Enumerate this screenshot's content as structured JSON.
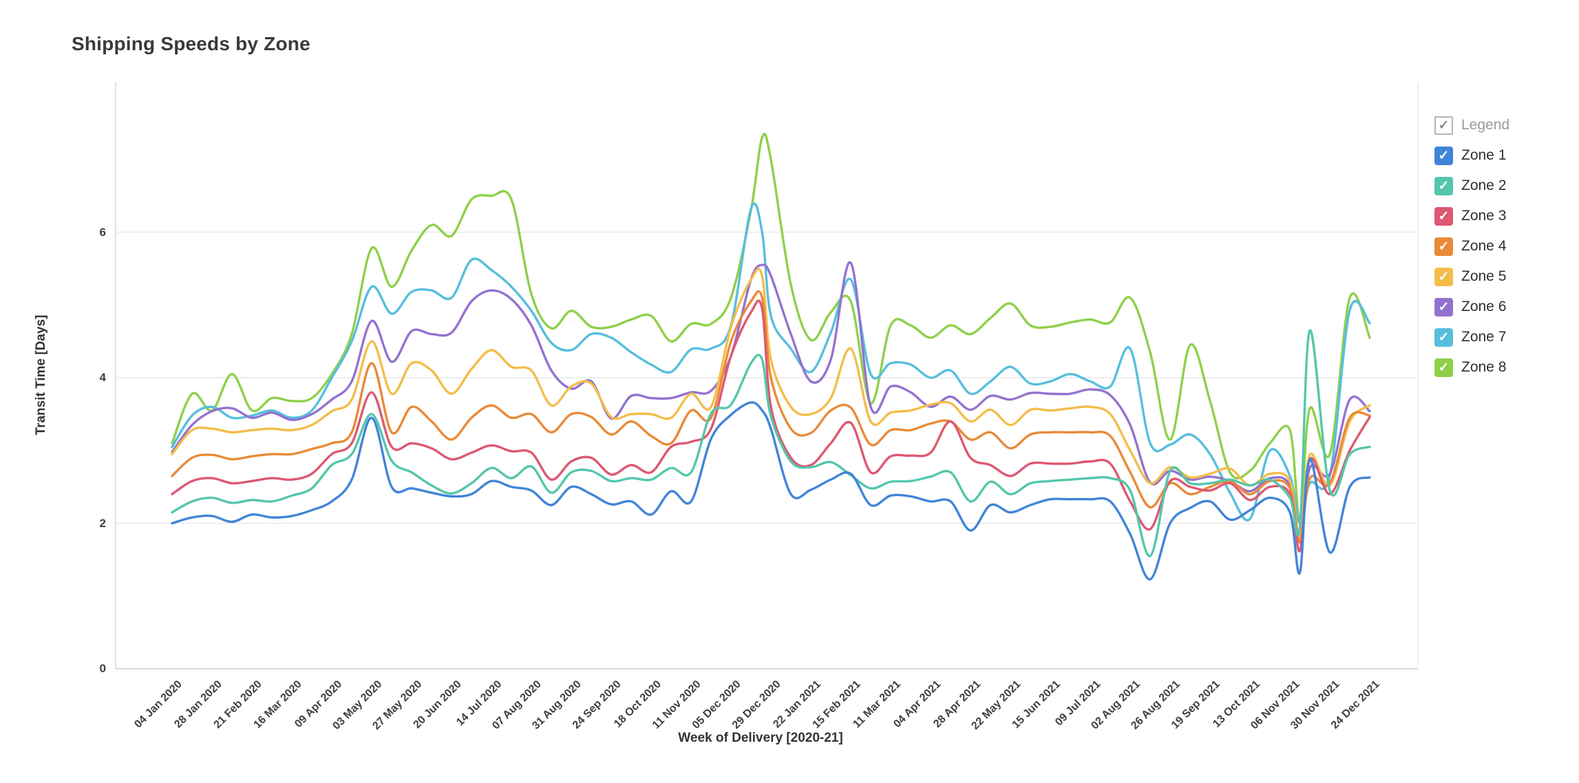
{
  "title": "Shipping Speeds by Zone",
  "legend": {
    "header_label": "Legend",
    "check_glyph": "✓",
    "items": [
      {
        "label": "Zone 1",
        "color": "#4184d8"
      },
      {
        "label": "Zone 2",
        "color": "#54c6ac"
      },
      {
        "label": "Zone 3",
        "color": "#dd5872"
      },
      {
        "label": "Zone 4",
        "color": "#e98a38"
      },
      {
        "label": "Zone 5",
        "color": "#f3bd4a"
      },
      {
        "label": "Zone 6",
        "color": "#9372cf"
      },
      {
        "label": "Zone 7",
        "color": "#57bedd"
      },
      {
        "label": "Zone 8",
        "color": "#8ed04a"
      }
    ]
  },
  "chart_data": {
    "type": "line",
    "title": "Shipping Speeds by Zone",
    "xlabel": "Week of Delivery [2020-21]",
    "ylabel": "Transit Time [Days]",
    "ylim": [
      0,
      7.6
    ],
    "yticks": [
      0,
      2,
      4,
      6
    ],
    "grid": "horizontal",
    "legend_position": "right",
    "x_tick_labels": [
      "04 Jan 2020",
      "28 Jan 2020",
      "21 Feb 2020",
      "16 Mar 2020",
      "09 Apr 2020",
      "03 May 2020",
      "27 May 2020",
      "20 Jun 2020",
      "14 Jul 2020",
      "07 Aug 2020",
      "31 Aug 2020",
      "24 Sep 2020",
      "18 Oct 2020",
      "11 Nov 2020",
      "05 Dec 2020",
      "29 Dec 2020",
      "22 Jan 2021",
      "15 Feb 2021",
      "11 Mar 2021",
      "04 Apr 2021",
      "28 Apr 2021",
      "22 May 2021",
      "15 Jun 2021",
      "09 Jul 2021",
      "02 Aug 2021",
      "26 Aug 2021",
      "19 Sep 2021",
      "13 Oct 2021",
      "06 Nov 2021",
      "30 Nov 2021",
      "24 Dec 2021"
    ],
    "x": [
      0,
      0.5,
      1,
      1.5,
      2,
      2.5,
      3,
      3.5,
      4,
      4.5,
      5,
      5.5,
      6,
      6.5,
      7,
      7.5,
      8,
      8.5,
      9,
      9.5,
      10,
      10.5,
      11,
      11.5,
      12,
      12.5,
      13,
      13.5,
      14,
      14.5,
      14.78,
      15,
      15.5,
      16,
      16.5,
      17,
      17.5,
      18,
      18.5,
      19,
      19.5,
      20,
      20.5,
      21,
      21.5,
      22,
      22.5,
      23,
      23.5,
      24,
      24.5,
      25,
      25.5,
      26,
      26.5,
      27,
      27.5,
      28,
      28.25,
      28.5,
      29,
      29.5,
      30
    ],
    "series": [
      {
        "name": "Zone 1",
        "color": "#4184d8",
        "values": [
          2.0,
          2.08,
          2.1,
          2.02,
          2.12,
          2.08,
          2.1,
          2.18,
          2.3,
          2.6,
          3.45,
          2.5,
          2.48,
          2.42,
          2.37,
          2.4,
          2.58,
          2.5,
          2.45,
          2.25,
          2.5,
          2.4,
          2.26,
          2.3,
          2.12,
          2.44,
          2.3,
          3.16,
          3.49,
          3.66,
          3.55,
          3.3,
          2.4,
          2.46,
          2.6,
          2.68,
          2.25,
          2.38,
          2.37,
          2.3,
          2.3,
          1.9,
          2.25,
          2.15,
          2.25,
          2.33,
          2.33,
          2.33,
          2.3,
          1.85,
          1.23,
          2.0,
          2.21,
          2.3,
          2.05,
          2.18,
          2.35,
          2.15,
          1.32,
          2.88,
          1.6,
          2.5,
          2.63
        ]
      },
      {
        "name": "Zone 2",
        "color": "#54c6ac",
        "values": [
          2.15,
          2.3,
          2.35,
          2.28,
          2.32,
          2.3,
          2.38,
          2.48,
          2.8,
          2.95,
          3.5,
          2.86,
          2.7,
          2.52,
          2.41,
          2.55,
          2.76,
          2.62,
          2.78,
          2.42,
          2.7,
          2.72,
          2.58,
          2.62,
          2.6,
          2.76,
          2.7,
          3.51,
          3.63,
          4.2,
          4.25,
          3.47,
          2.85,
          2.77,
          2.84,
          2.66,
          2.48,
          2.57,
          2.58,
          2.64,
          2.7,
          2.3,
          2.57,
          2.4,
          2.55,
          2.58,
          2.6,
          2.62,
          2.62,
          2.45,
          1.55,
          2.72,
          2.55,
          2.55,
          2.6,
          2.52,
          2.6,
          2.35,
          1.95,
          4.65,
          2.45,
          2.95,
          3.05
        ]
      },
      {
        "name": "Zone 3",
        "color": "#dd5872",
        "values": [
          2.4,
          2.58,
          2.62,
          2.55,
          2.58,
          2.62,
          2.6,
          2.68,
          2.95,
          3.1,
          3.8,
          3.05,
          3.1,
          3.03,
          2.88,
          2.97,
          3.07,
          2.99,
          2.97,
          2.6,
          2.85,
          2.9,
          2.67,
          2.8,
          2.7,
          3.05,
          3.12,
          3.3,
          4.3,
          4.9,
          4.95,
          3.6,
          2.9,
          2.8,
          3.1,
          3.38,
          2.7,
          2.92,
          2.93,
          2.97,
          3.4,
          2.9,
          2.8,
          2.65,
          2.82,
          2.82,
          2.82,
          2.85,
          2.82,
          2.3,
          1.92,
          2.58,
          2.5,
          2.45,
          2.55,
          2.32,
          2.5,
          2.4,
          1.62,
          2.88,
          2.4,
          3.0,
          3.46
        ]
      },
      {
        "name": "Zone 4",
        "color": "#e98a38",
        "values": [
          2.65,
          2.9,
          2.94,
          2.88,
          2.92,
          2.95,
          2.95,
          3.02,
          3.1,
          3.25,
          4.2,
          3.25,
          3.6,
          3.4,
          3.15,
          3.45,
          3.62,
          3.45,
          3.5,
          3.25,
          3.5,
          3.46,
          3.22,
          3.4,
          3.2,
          3.1,
          3.55,
          3.45,
          4.5,
          5.05,
          5.1,
          4.0,
          3.3,
          3.24,
          3.55,
          3.59,
          3.08,
          3.28,
          3.28,
          3.37,
          3.4,
          3.15,
          3.25,
          3.03,
          3.22,
          3.25,
          3.25,
          3.25,
          3.2,
          2.7,
          2.22,
          2.55,
          2.4,
          2.5,
          2.58,
          2.4,
          2.58,
          2.48,
          1.75,
          2.62,
          2.55,
          3.45,
          3.48
        ]
      },
      {
        "name": "Zone 5",
        "color": "#f3bd4a",
        "values": [
          2.95,
          3.28,
          3.3,
          3.25,
          3.28,
          3.3,
          3.28,
          3.35,
          3.54,
          3.7,
          4.5,
          3.78,
          4.2,
          4.1,
          3.78,
          4.12,
          4.38,
          4.15,
          4.1,
          3.62,
          3.88,
          3.92,
          3.46,
          3.5,
          3.5,
          3.45,
          3.78,
          3.6,
          4.7,
          5.35,
          5.4,
          4.25,
          3.6,
          3.5,
          3.72,
          4.4,
          3.4,
          3.52,
          3.55,
          3.63,
          3.65,
          3.4,
          3.56,
          3.35,
          3.56,
          3.55,
          3.58,
          3.6,
          3.5,
          3.0,
          2.55,
          2.77,
          2.63,
          2.68,
          2.75,
          2.52,
          2.68,
          2.58,
          1.8,
          2.94,
          2.52,
          3.4,
          3.62
        ]
      },
      {
        "name": "Zone 6",
        "color": "#9372cf",
        "values": [
          2.98,
          3.35,
          3.54,
          3.58,
          3.45,
          3.52,
          3.42,
          3.5,
          3.7,
          3.95,
          4.78,
          4.22,
          4.64,
          4.6,
          4.62,
          5.05,
          5.2,
          5.08,
          4.72,
          4.1,
          3.85,
          3.95,
          3.44,
          3.75,
          3.72,
          3.72,
          3.8,
          3.82,
          4.3,
          5.35,
          5.55,
          5.4,
          4.6,
          3.95,
          4.25,
          5.58,
          3.6,
          3.88,
          3.8,
          3.6,
          3.74,
          3.56,
          3.75,
          3.7,
          3.79,
          3.78,
          3.78,
          3.84,
          3.76,
          3.35,
          2.56,
          2.72,
          2.6,
          2.64,
          2.58,
          2.44,
          2.62,
          2.52,
          1.74,
          2.76,
          2.68,
          3.7,
          3.54
        ]
      },
      {
        "name": "Zone 7",
        "color": "#57bedd",
        "values": [
          3.05,
          3.48,
          3.6,
          3.45,
          3.48,
          3.55,
          3.45,
          3.55,
          4.0,
          4.5,
          5.25,
          4.88,
          5.18,
          5.2,
          5.1,
          5.62,
          5.48,
          5.25,
          4.92,
          4.48,
          4.38,
          4.6,
          4.55,
          4.35,
          4.18,
          4.08,
          4.39,
          4.4,
          4.72,
          6.32,
          6.0,
          4.85,
          4.4,
          4.08,
          4.62,
          5.35,
          4.05,
          4.2,
          4.18,
          4.0,
          4.1,
          3.78,
          3.95,
          4.15,
          3.92,
          3.95,
          4.05,
          3.95,
          3.88,
          4.4,
          3.1,
          3.08,
          3.22,
          2.95,
          2.42,
          2.06,
          3.0,
          2.65,
          2.0,
          2.55,
          2.65,
          4.93,
          4.75
        ]
      },
      {
        "name": "Zone 8",
        "color": "#8ed04a",
        "values": [
          3.1,
          3.78,
          3.55,
          4.05,
          3.55,
          3.72,
          3.68,
          3.72,
          4.05,
          4.6,
          5.78,
          5.25,
          5.75,
          6.1,
          5.95,
          6.45,
          6.5,
          6.45,
          5.15,
          4.68,
          4.92,
          4.7,
          4.7,
          4.8,
          4.85,
          4.5,
          4.74,
          4.74,
          5.1,
          6.3,
          7.3,
          7.0,
          5.28,
          4.52,
          4.9,
          5.05,
          3.65,
          4.72,
          4.72,
          4.55,
          4.72,
          4.6,
          4.82,
          5.02,
          4.72,
          4.7,
          4.76,
          4.8,
          4.76,
          5.1,
          4.35,
          3.15,
          4.45,
          3.68,
          2.7,
          2.72,
          3.1,
          3.28,
          2.05,
          3.58,
          2.95,
          5.1,
          4.55
        ]
      }
    ]
  }
}
